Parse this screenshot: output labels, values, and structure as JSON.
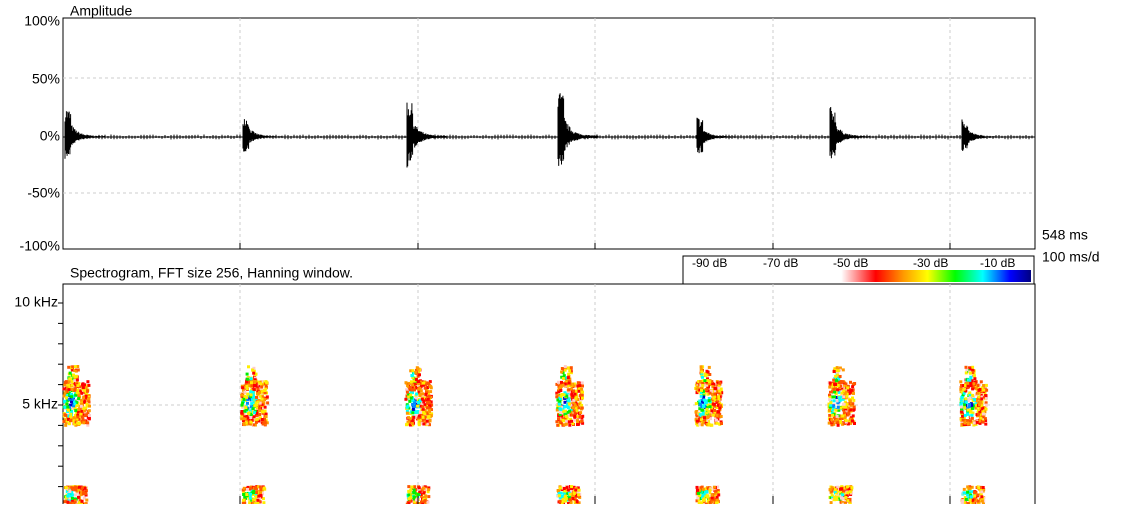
{
  "amplitude_view": {
    "title": "Amplitude",
    "y_ticks": [
      "100%",
      "50%",
      "0%",
      "-50%",
      "-100%"
    ],
    "time_span": "548 ms",
    "time_scale": "100 ms/d"
  },
  "spectrogram_view": {
    "title": "Spectrogram, FFT size 256, Hanning window.",
    "colorbar_labels": [
      "-90 dB",
      "-70 dB",
      "-50 dB",
      "-30 dB",
      "-10 dB"
    ],
    "y_ticks": [
      "10 kHz",
      "5 kHz"
    ]
  }
}
